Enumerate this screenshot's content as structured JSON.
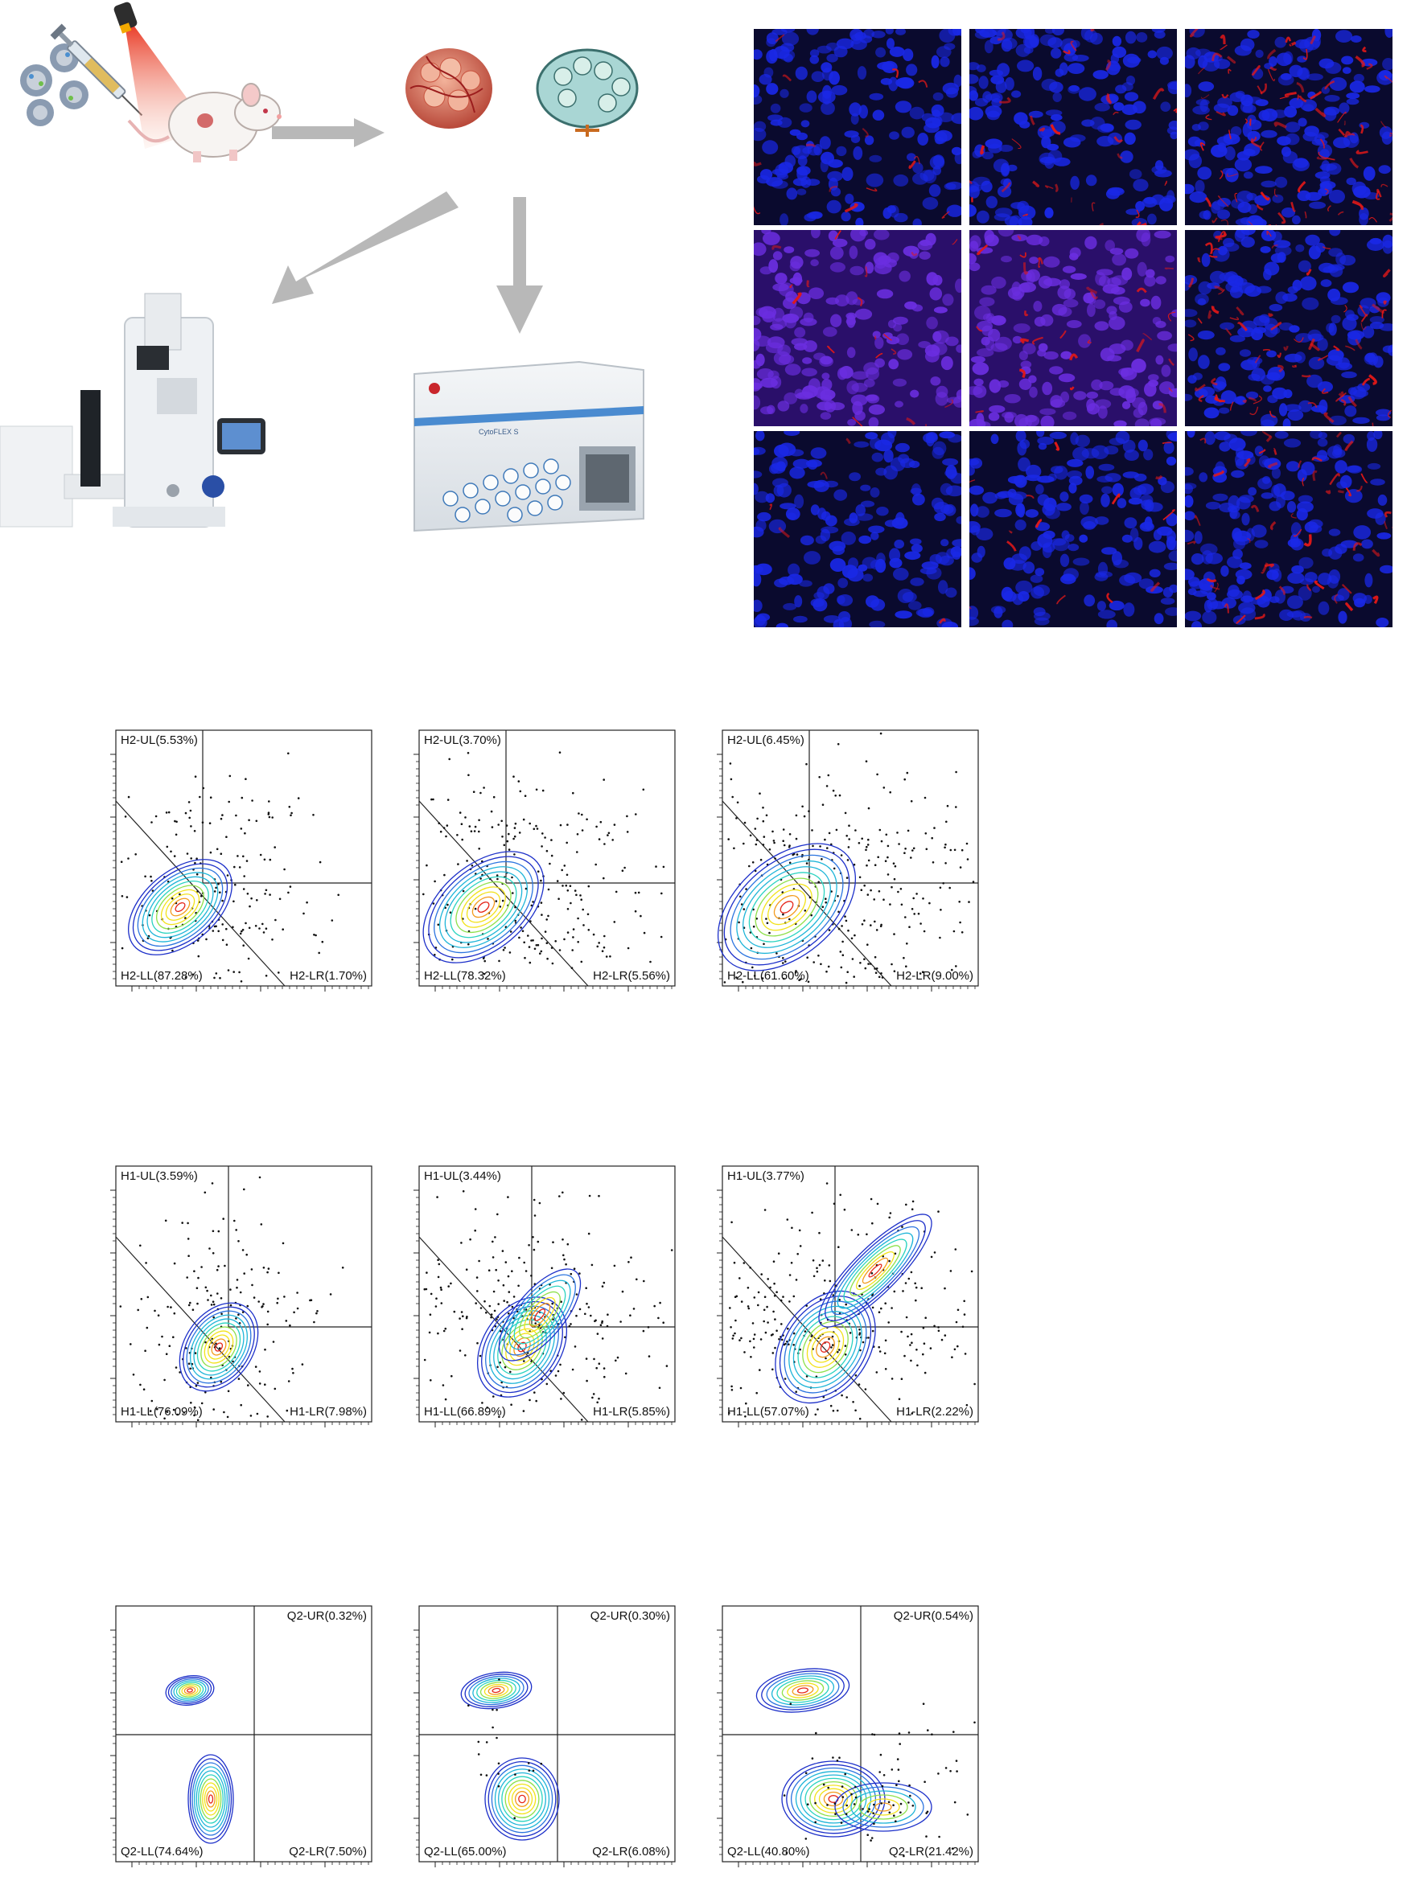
{
  "illustration": {
    "icons": [
      "nanoparticles-icon",
      "syringe-icon",
      "laser-icon",
      "mouse-icon",
      "tumor-icon",
      "lymph-node-icon",
      "microscope-icon",
      "flow-cytometer-icon"
    ],
    "cytometer_brand": "CytoFLEX S"
  },
  "colors": {
    "nuclei": "#1a28e6",
    "marker": "#e01818",
    "arrow": "#b8b8b8",
    "contour_low": "#1c2fc9",
    "contour_mid": "#2ad3c0",
    "contour_high": "#f2e21a",
    "contour_peak": "#e5261a"
  },
  "microscopy": {
    "rows": 3,
    "cols": 3,
    "marker_intensity": [
      [
        0.15,
        0.35,
        0.9
      ],
      [
        0.2,
        0.3,
        0.75
      ],
      [
        0.05,
        0.15,
        0.55
      ]
    ]
  },
  "flow_rows": [
    {
      "type": "diagonal",
      "plots": [
        {
          "ul": "H2-UL(5.53%)",
          "ll": "H2-LL(87.28%)",
          "lr": "H2-LR(1.70%)"
        },
        {
          "ul": "H2-UL(3.70%)",
          "ll": "H2-LL(78.32%)",
          "lr": "H2-LR(5.56%)"
        },
        {
          "ul": "H2-UL(6.45%)",
          "ll": "H2-LL(61.60%)",
          "lr": "H2-LR(9.00%)"
        }
      ]
    },
    {
      "type": "diagonal",
      "plots": [
        {
          "ul": "H1-UL(3.59%)",
          "ll": "H1-LL(76.09%)",
          "lr": "H1-LR(7.98%)"
        },
        {
          "ul": "H1-UL(3.44%)",
          "ll": "H1-LL(66.89%)",
          "lr": "H1-LR(5.85%)"
        },
        {
          "ul": "H1-UL(3.77%)",
          "ll": "H1-LL(57.07%)",
          "lr": "H1-LR(2.22%)"
        }
      ]
    },
    {
      "type": "quadrant",
      "plots": [
        {
          "ur": "Q2-UR(0.32%)",
          "ll": "Q2-LL(74.64%)",
          "lr": "Q2-LR(7.50%)"
        },
        {
          "ur": "Q2-UR(0.30%)",
          "ll": "Q2-LL(65.00%)",
          "lr": "Q2-LR(6.08%)"
        },
        {
          "ur": "Q2-UR(0.54%)",
          "ll": "Q2-LL(40.80%)",
          "lr": "Q2-LR(21.42%)"
        }
      ]
    }
  ]
}
